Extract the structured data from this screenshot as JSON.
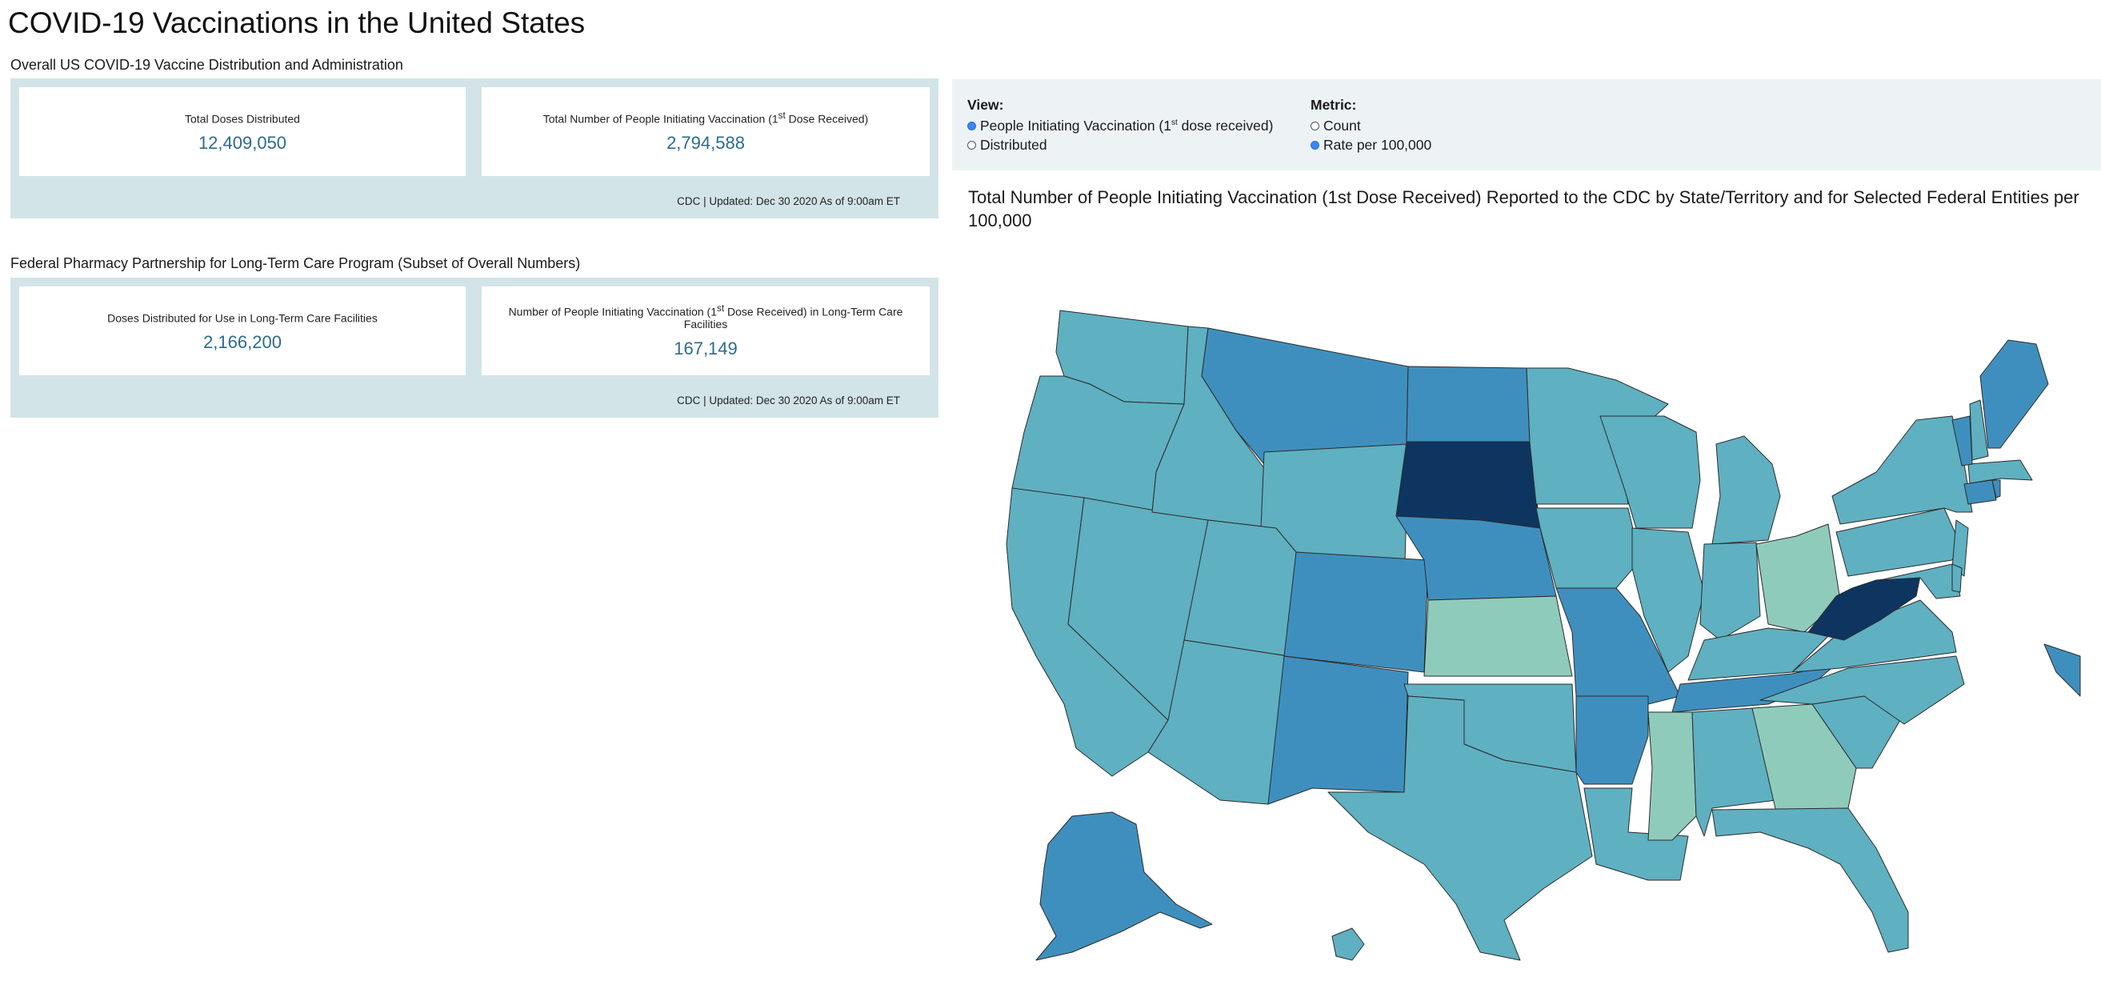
{
  "page": {
    "title": "COVID-19 Vaccinations in the United States"
  },
  "overall": {
    "heading": "Overall US COVID-19 Vaccine Distribution and Administration",
    "cards": [
      {
        "label_pre": "Total Doses Distributed",
        "label_sup": "",
        "label_post": "",
        "value": "12,409,050"
      },
      {
        "label_pre": "Total Number of People Initiating Vaccination (1",
        "label_sup": "st",
        "label_post": " Dose Received)",
        "value": "2,794,588"
      }
    ],
    "footer": "CDC | Updated: Dec 30 2020 As of 9:00am ET"
  },
  "ltc": {
    "heading": "Federal Pharmacy Partnership for Long-Term Care Program (Subset of Overall Numbers)",
    "cards": [
      {
        "label_pre": "Doses Distributed for Use in Long-Term Care Facilities",
        "label_sup": "",
        "label_post": "",
        "value": "2,166,200"
      },
      {
        "label_pre": "Number of People Initiating Vaccination (1",
        "label_sup": "st",
        "label_post": " Dose Received) in Long-Term Care Facilities",
        "value": "167,149"
      }
    ],
    "footer": "CDC | Updated: Dec 30 2020 As of 9:00am ET"
  },
  "controls": {
    "view": {
      "title": "View:",
      "options": [
        {
          "pre": "People Initiating Vaccination (1",
          "sup": "st",
          "post": " dose received)",
          "checked": true
        },
        {
          "pre": "Distributed",
          "sup": "",
          "post": "",
          "checked": false
        }
      ]
    },
    "metric": {
      "title": "Metric:",
      "options": [
        {
          "pre": "Count",
          "sup": "",
          "post": "",
          "checked": false
        },
        {
          "pre": "Rate per 100,000",
          "sup": "",
          "post": "",
          "checked": true
        }
      ]
    }
  },
  "map": {
    "title": "Total Number of People Initiating Vaccination (1st Dose Received) Reported to the CDC by State/Territory and for Selected Federal Entities per 100,000",
    "palette": {
      "light": "#8fcbbb",
      "mid": "#5fb0c1",
      "high": "#3f8fbe",
      "max": "#0e3560"
    }
  }
}
